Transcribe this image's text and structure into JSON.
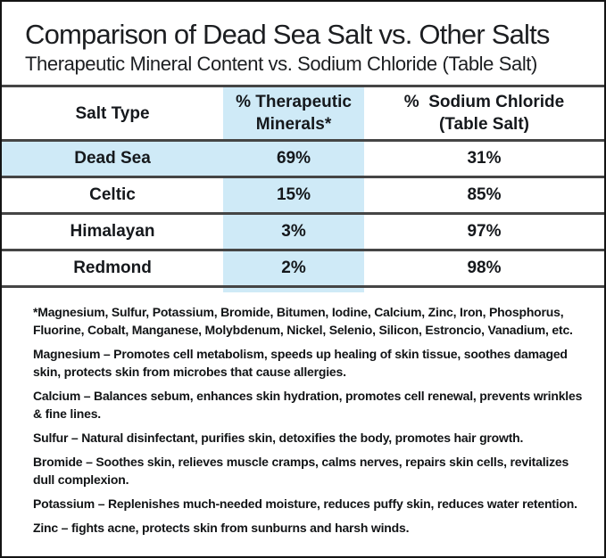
{
  "header": {
    "title": "Comparison of Dead Sea Salt vs. Other Salts",
    "subtitle": "Therapeutic Mineral Content vs. Sodium Chloride (Table Salt)"
  },
  "table": {
    "columns": [
      {
        "label": "Salt Type"
      },
      {
        "label": "% Therapeutic\nMinerals*"
      },
      {
        "label": "%  Sodium Chloride\n(Table Salt)"
      }
    ],
    "rows": [
      {
        "salt": "Dead Sea",
        "therapeutic": "69%",
        "sodium": "31%",
        "highlighted": true
      },
      {
        "salt": "Celtic",
        "therapeutic": "15%",
        "sodium": "85%",
        "highlighted": false
      },
      {
        "salt": "Himalayan",
        "therapeutic": "3%",
        "sodium": "97%",
        "highlighted": false
      },
      {
        "salt": "Redmond",
        "therapeutic": "2%",
        "sodium": "98%",
        "highlighted": false
      }
    ]
  },
  "chart_data": {
    "type": "table",
    "title": "Comparison of Dead Sea Salt vs. Other Salts",
    "subtitle": "Therapeutic Mineral Content vs. Sodium Chloride (Table Salt)",
    "columns": [
      "Salt Type",
      "% Therapeutic Minerals*",
      "% Sodium Chloride (Table Salt)"
    ],
    "rows": [
      [
        "Dead Sea",
        69,
        31
      ],
      [
        "Celtic",
        15,
        85
      ],
      [
        "Himalayan",
        3,
        97
      ],
      [
        "Redmond",
        2,
        98
      ]
    ],
    "units": "%",
    "highlighted_row": "Dead Sea",
    "highlighted_column": "% Therapeutic Minerals*"
  },
  "notes": {
    "footnote": "*Magnesium, Sulfur, Potassium, Bromide, Bitumen, Iodine, Calcium, Zinc, Iron, Phosphorus, Fluorine, Cobalt, Manganese, Molybdenum, Nickel, Selenio, Silicon, Estroncio, Vanadium, etc.",
    "benefits": [
      {
        "name": "Magnesium",
        "text": "Magnesium – Promotes cell metabolism, speeds up healing of skin tissue, soothes damaged skin, protects skin from microbes that cause allergies."
      },
      {
        "name": "Calcium",
        "text": "Calcium – Balances sebum, enhances skin hydration, promotes cell renewal, prevents wrinkles & fine lines."
      },
      {
        "name": "Sulfur",
        "text": "Sulfur – Natural disinfectant, purifies skin, detoxifies the body, promotes hair growth."
      },
      {
        "name": "Bromide",
        "text": "Bromide – Soothes skin, relieves muscle cramps, calms nerves, repairs skin cells, revitalizes dull complexion."
      },
      {
        "name": "Potassium",
        "text": "Potassium – Replenishes much-needed moisture, reduces puffy skin, reduces water retention."
      },
      {
        "name": "Zinc",
        "text": "Zinc – fights acne, protects skin from sunburns and harsh winds."
      }
    ]
  },
  "colors": {
    "highlight_blue": "#cfeaf7",
    "table_border": "#454545",
    "page_border": "#141414",
    "text": "#17191c"
  }
}
